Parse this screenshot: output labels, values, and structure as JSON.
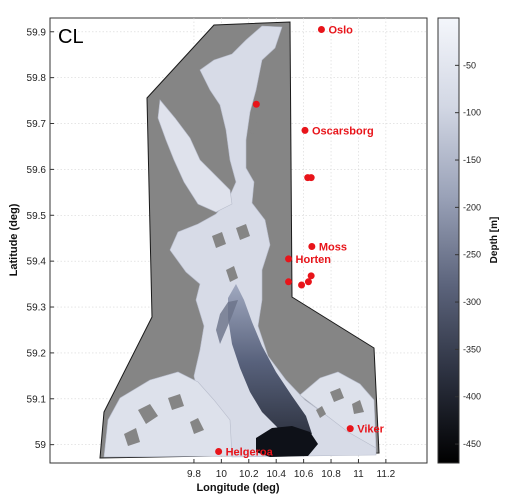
{
  "panel_label": "CL",
  "chart_data": {
    "type": "map",
    "xlabel": "Longitude (deg)",
    "ylabel": "Latitude (deg)",
    "xlim": [
      8.75,
      11.5
    ],
    "ylim": [
      58.96,
      59.93
    ],
    "xticks": [
      "9.8",
      "10",
      "10.2",
      "10.4",
      "10.6",
      "10.8",
      "11",
      "11.2"
    ],
    "xtick_values": [
      9.8,
      10.0,
      10.2,
      10.4,
      10.6,
      10.8,
      11.0,
      11.2
    ],
    "yticks": [
      "59.9",
      "59.8",
      "59.7",
      "59.6",
      "59.5",
      "59.4",
      "59.3",
      "59.2",
      "59.1",
      "59"
    ],
    "ytick_values": [
      59.9,
      59.8,
      59.7,
      59.6,
      59.5,
      59.4,
      59.3,
      59.2,
      59.1,
      59.0
    ],
    "colorbar": {
      "label": "Depth [m]",
      "ticks": [
        "-50",
        "-100",
        "-150",
        "-200",
        "-250",
        "-300",
        "-350",
        "-400",
        "-450"
      ],
      "tick_values": [
        -50,
        -100,
        -150,
        -200,
        -250,
        -300,
        -350,
        -400,
        -450
      ],
      "range": [
        0,
        -470
      ],
      "colors": [
        "#f4f6fb",
        "#d2d7e4",
        "#9aa2b8",
        "#5c647c",
        "#2c3140",
        "#000000"
      ]
    },
    "land_color": "#858585",
    "water_color": "#d8dce8",
    "marker_color": "#e8141a",
    "sites": [
      {
        "name": "Oslo",
        "lon": 10.73,
        "lat": 59.905
      },
      {
        "name": "Oscarsborg",
        "lon": 10.61,
        "lat": 59.685
      },
      {
        "name": "Moss",
        "lon": 10.66,
        "lat": 59.432
      },
      {
        "name": "Horten",
        "lon": 10.49,
        "lat": 59.405
      },
      {
        "name": "Viker",
        "lon": 10.94,
        "lat": 59.035
      },
      {
        "name": "Helgeroa",
        "lon": 9.98,
        "lat": 58.985
      }
    ],
    "stations": [
      {
        "lon": 10.255,
        "lat": 59.742
      },
      {
        "lon": 10.63,
        "lat": 59.582
      },
      {
        "lon": 10.655,
        "lat": 59.582
      },
      {
        "lon": 10.655,
        "lat": 59.368
      },
      {
        "lon": 10.635,
        "lat": 59.355
      },
      {
        "lon": 10.585,
        "lat": 59.348
      },
      {
        "lon": 10.49,
        "lat": 59.355
      }
    ]
  }
}
